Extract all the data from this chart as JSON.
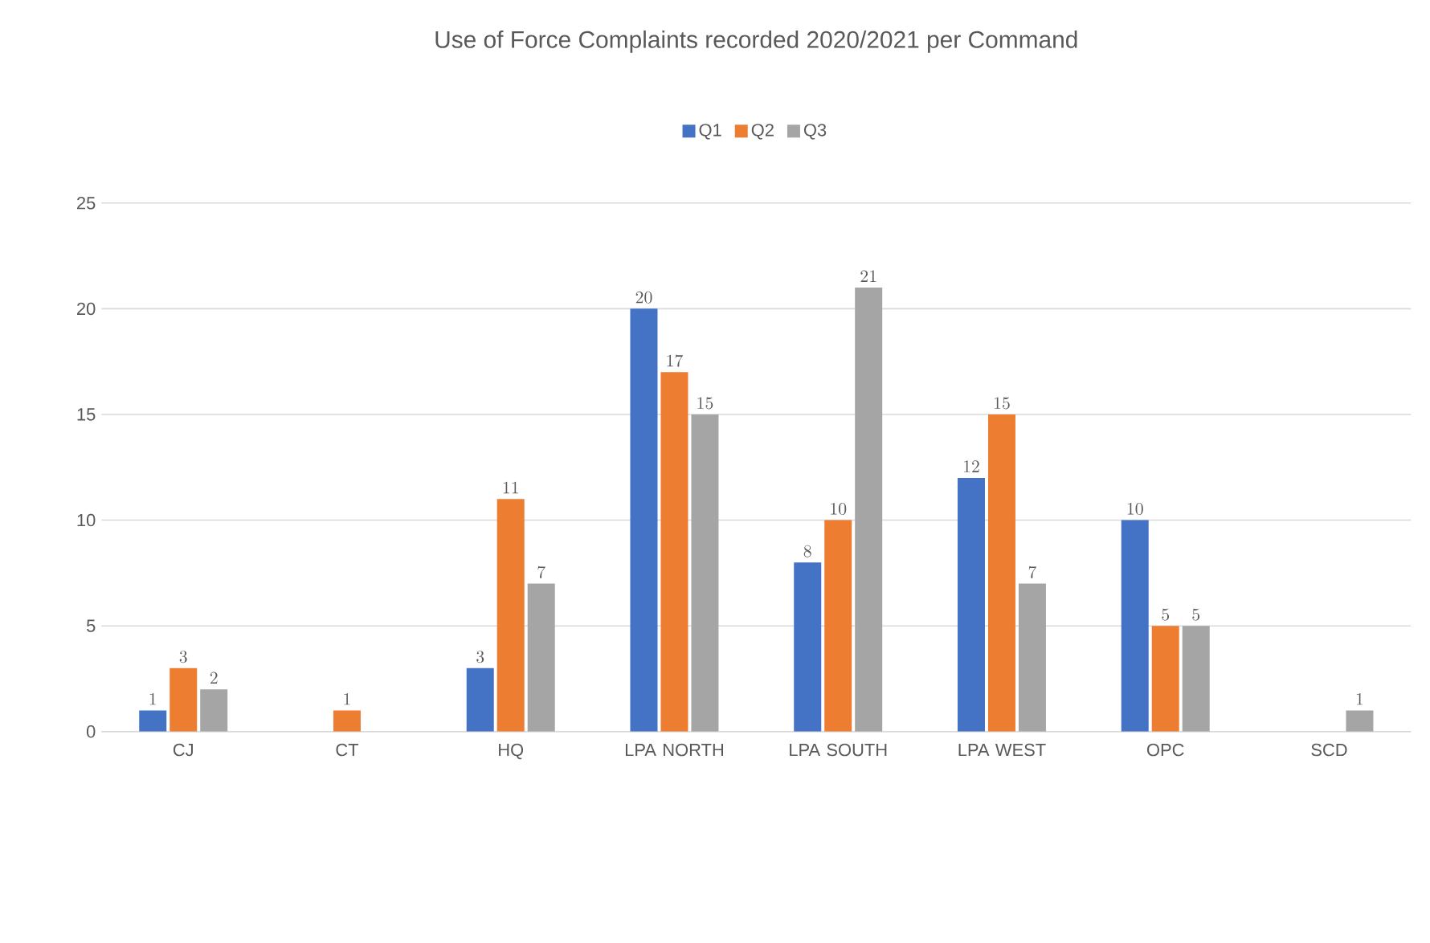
{
  "chart_data": {
    "type": "bar",
    "title": "Use of Force Complaints recorded 2020/2021 per Command",
    "categories": [
      "CJ",
      "CT",
      "HQ",
      "LPA NORTH",
      "LPA SOUTH",
      "LPA WEST",
      "OPC",
      "SCD"
    ],
    "series": [
      {
        "name": "Q1",
        "color": "#4472c4",
        "values": [
          1,
          null,
          3,
          20,
          8,
          12,
          10,
          null
        ]
      },
      {
        "name": "Q2",
        "color": "#ed7d31",
        "values": [
          3,
          1,
          11,
          17,
          10,
          15,
          5,
          null
        ]
      },
      {
        "name": "Q3",
        "color": "#a5a5a5",
        "values": [
          2,
          null,
          7,
          15,
          21,
          7,
          5,
          1
        ]
      }
    ],
    "ylim": [
      0,
      25
    ],
    "yticks": [
      0,
      5,
      10,
      15,
      20,
      25
    ],
    "grid": "y",
    "legend": "top",
    "data_labels": true
  }
}
